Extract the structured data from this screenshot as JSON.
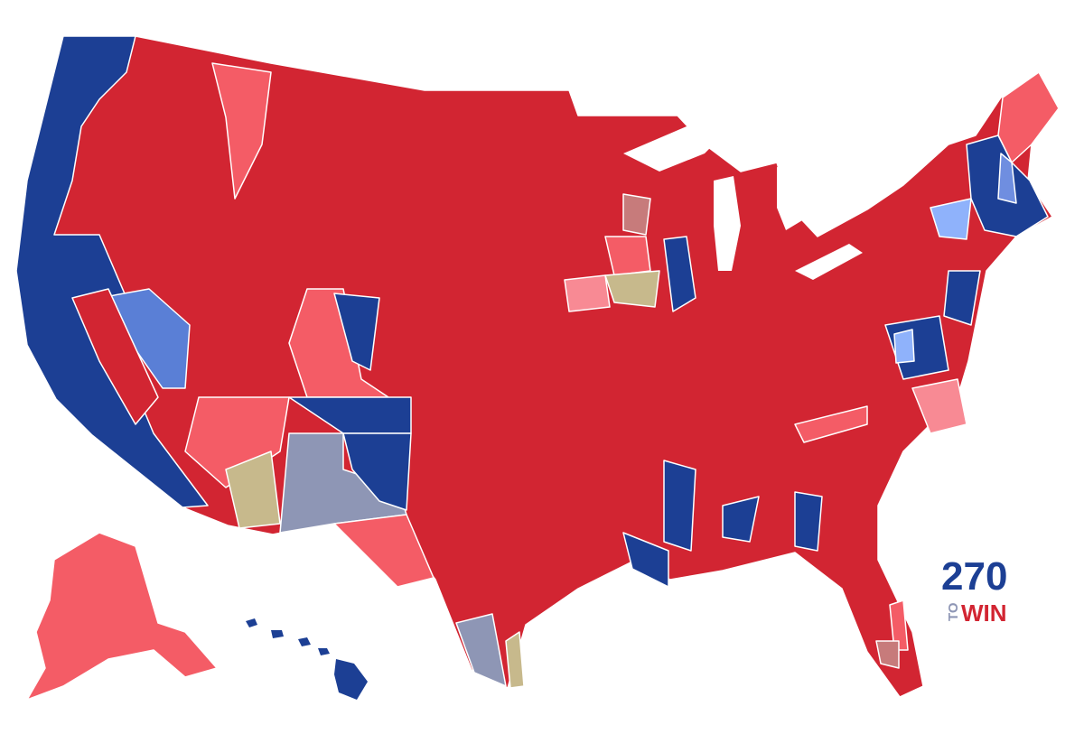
{
  "logo": {
    "number": "270",
    "to": "TO",
    "win": "WIN"
  }
}
